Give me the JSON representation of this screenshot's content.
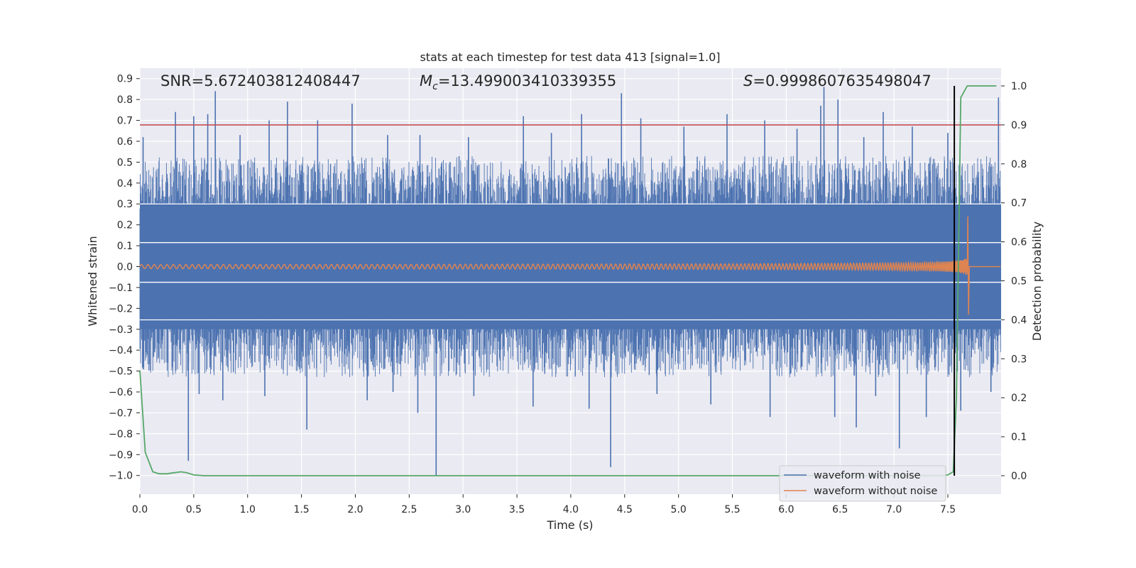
{
  "chart_data": {
    "type": "line",
    "title": "stats at each timestep for test data 413 [signal=1.0]",
    "xlabel": "Time (s)",
    "ylabel": "Whitened strain",
    "y2label": "Detection probability",
    "xlim": [
      0.0,
      8.0
    ],
    "ylim": [
      -1.09,
      0.97
    ],
    "y2lim": [
      -0.05,
      1.05
    ],
    "x_ticks": [
      "0.0",
      "0.5",
      "1.0",
      "1.5",
      "2.0",
      "2.5",
      "3.0",
      "3.5",
      "4.0",
      "4.5",
      "5.0",
      "5.5",
      "6.0",
      "6.5",
      "7.0",
      "7.5"
    ],
    "y_ticks": [
      "0.9",
      "0.8",
      "0.7",
      "0.6",
      "0.5",
      "0.4",
      "0.3",
      "0.2",
      "0.1",
      "0.0",
      "−0.1",
      "−0.2",
      "−0.3",
      "−0.4",
      "−0.5",
      "−0.6",
      "−0.7",
      "−0.8",
      "−0.9",
      "−1.0"
    ],
    "y2_ticks": [
      "1.0",
      "0.9",
      "0.8",
      "0.7",
      "0.6",
      "0.5",
      "0.4",
      "0.3",
      "0.2",
      "0.1",
      "0.0"
    ],
    "grid": true,
    "legend_position": "bottom-right",
    "annotations": {
      "snr": "SNR=5.672403812408447",
      "mc_symbol": "M",
      "mc_subscript": "c",
      "mc_value": "=13.499003410339355",
      "s_symbol": "S",
      "s_value": "=0.9998607635498047"
    },
    "threshold_probability": 0.9,
    "detection_time": 7.56,
    "series": [
      {
        "name": "waveform with noise",
        "color": "#4c72b0",
        "axis": "left",
        "description_values": {
          "band_low": -0.4,
          "band_high": 0.4
        },
        "peaks_up": [
          [
            0.03,
            0.62
          ],
          [
            0.33,
            0.74
          ],
          [
            0.5,
            0.72
          ],
          [
            0.63,
            0.73
          ],
          [
            0.7,
            0.84
          ],
          [
            0.93,
            0.63
          ],
          [
            1.2,
            0.7
          ],
          [
            1.37,
            0.79
          ],
          [
            1.65,
            0.7
          ],
          [
            1.97,
            0.78
          ],
          [
            2.3,
            0.63
          ],
          [
            2.6,
            0.63
          ],
          [
            3.05,
            0.62
          ],
          [
            3.56,
            0.72
          ],
          [
            3.82,
            0.64
          ],
          [
            4.1,
            0.73
          ],
          [
            4.47,
            0.83
          ],
          [
            4.65,
            0.71
          ],
          [
            5.05,
            0.67
          ],
          [
            5.45,
            0.73
          ],
          [
            5.8,
            0.7
          ],
          [
            6.1,
            0.66
          ],
          [
            6.32,
            0.77
          ],
          [
            6.35,
            0.86
          ],
          [
            6.48,
            0.8
          ],
          [
            6.72,
            0.62
          ],
          [
            6.9,
            0.74
          ],
          [
            7.17,
            0.67
          ],
          [
            7.5,
            0.64
          ],
          [
            7.97,
            0.81
          ]
        ],
        "peaks_down": [
          [
            0.45,
            -0.93
          ],
          [
            0.55,
            -0.61
          ],
          [
            0.77,
            -0.64
          ],
          [
            1.16,
            -0.62
          ],
          [
            1.55,
            -0.78
          ],
          [
            2.11,
            -0.64
          ],
          [
            2.35,
            -0.6
          ],
          [
            2.58,
            -0.7
          ],
          [
            2.75,
            -1.0
          ],
          [
            3.1,
            -0.62
          ],
          [
            3.65,
            -0.67
          ],
          [
            4.17,
            -0.68
          ],
          [
            4.37,
            -0.96
          ],
          [
            4.8,
            -0.61
          ],
          [
            5.3,
            -0.66
          ],
          [
            5.85,
            -0.72
          ],
          [
            6.45,
            -0.72
          ],
          [
            6.65,
            -0.77
          ],
          [
            6.83,
            -0.62
          ],
          [
            7.05,
            -0.87
          ],
          [
            7.3,
            -0.72
          ],
          [
            7.62,
            -0.69
          ],
          [
            7.9,
            -0.6
          ]
        ]
      },
      {
        "name": "waveform without noise",
        "color": "#dd8452",
        "axis": "left",
        "chirp": {
          "start_amplitude": 0.01,
          "peak_amplitude": 0.24,
          "peak_time": 7.68,
          "trough": -0.23,
          "end_time": 7.7
        }
      },
      {
        "name": "",
        "color": "#55a868",
        "axis": "right",
        "x": [
          0.0,
          0.05,
          0.12,
          0.18,
          0.25,
          0.3,
          0.38,
          0.43,
          0.5,
          0.6,
          0.8,
          1.5,
          3.0,
          5.0,
          7.0,
          7.45,
          7.5,
          7.55,
          7.58,
          7.62,
          7.68,
          7.75,
          7.95
        ],
        "values": [
          0.27,
          0.06,
          0.01,
          0.005,
          0.005,
          0.007,
          0.01,
          0.008,
          0.002,
          0.0,
          0.0,
          0.0,
          0.0,
          0.0,
          0.0,
          0.0,
          0.002,
          0.01,
          0.2,
          0.97,
          1.0,
          1.0,
          1.0
        ]
      }
    ]
  }
}
